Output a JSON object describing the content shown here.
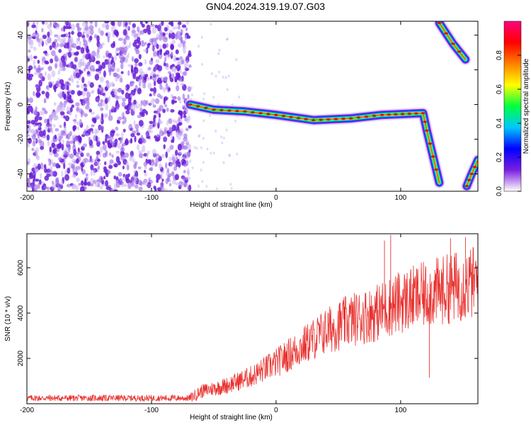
{
  "title": "GN04.2024.319.19.07.G03",
  "colors": {
    "background": "#ffffff",
    "snr_line": "#e8322f",
    "speckle_dark": "#6a1fd6",
    "speckle_light": "#c9b3f2"
  },
  "chart_data": [
    {
      "type": "heatmap",
      "name": "spectrogram",
      "xlabel": "Height of straight line (km)",
      "ylabel": "Frequency (Hz)",
      "xlim": [
        -200,
        162
      ],
      "ylim": [
        -50,
        48
      ],
      "xticks": [
        -200,
        -100,
        0,
        100
      ],
      "yticks": [
        -40,
        -20,
        0,
        20,
        40
      ],
      "colorbar": {
        "label": "Normalized spectral amplitude",
        "range": [
          0,
          1
        ],
        "ticks": [
          "0.0",
          "0.2",
          "0.4",
          "0.6",
          "0.8"
        ],
        "stops": [
          "#ffffff",
          "#7a1fe0",
          "#0000ff",
          "#00c8ff",
          "#00ff40",
          "#ffff00",
          "#ff8000",
          "#ff0000",
          "#ff0080"
        ]
      },
      "noise_region_x": [
        -200,
        -69
      ],
      "ridge": [
        {
          "x": -69,
          "y": 0
        },
        {
          "x": -50,
          "y": -3
        },
        {
          "x": -25,
          "y": -4
        },
        {
          "x": 0,
          "y": -6
        },
        {
          "x": 30,
          "y": -9
        },
        {
          "x": 60,
          "y": -8
        },
        {
          "x": 85,
          "y": -6
        },
        {
          "x": 118,
          "y": -5
        },
        {
          "x": 121,
          "y": -15
        },
        {
          "x": 126,
          "y": -30
        },
        {
          "x": 131,
          "y": -45
        }
      ],
      "ridge_aliased_upper": [
        {
          "x": 131,
          "y": 47
        },
        {
          "x": 142,
          "y": 35
        },
        {
          "x": 152,
          "y": 26
        }
      ],
      "ridge_aliased_lower": [
        {
          "x": 153,
          "y": -47
        },
        {
          "x": 157,
          "y": -40
        },
        {
          "x": 162,
          "y": -32
        }
      ]
    },
    {
      "type": "line",
      "name": "snr",
      "xlabel": "Height of straight line (km)",
      "ylabel": "SNR (10 * v/v)",
      "xlim": [
        -200,
        162
      ],
      "ylim": [
        0,
        7500
      ],
      "xticks": [
        -200,
        -100,
        0,
        100
      ],
      "yticks": [
        2000,
        4000,
        6000
      ],
      "trend": [
        {
          "x": -200,
          "y": 250
        },
        {
          "x": -69,
          "y": 250
        },
        {
          "x": -60,
          "y": 550
        },
        {
          "x": -40,
          "y": 800
        },
        {
          "x": -20,
          "y": 1200
        },
        {
          "x": 0,
          "y": 1800
        },
        {
          "x": 20,
          "y": 2500
        },
        {
          "x": 40,
          "y": 3200
        },
        {
          "x": 60,
          "y": 3700
        },
        {
          "x": 80,
          "y": 4000
        },
        {
          "x": 100,
          "y": 4500
        },
        {
          "x": 120,
          "y": 4800
        },
        {
          "x": 140,
          "y": 5100
        },
        {
          "x": 162,
          "y": 5400
        }
      ],
      "spikes": [
        {
          "x": 92,
          "y": 7450
        },
        {
          "x": 87,
          "y": 7200
        },
        {
          "x": 123,
          "y": 1150
        },
        {
          "x": 140,
          "y": 7300
        },
        {
          "x": 152,
          "y": 7350
        }
      ]
    }
  ]
}
